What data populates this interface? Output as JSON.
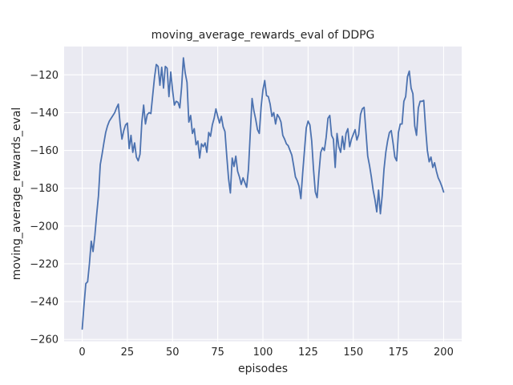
{
  "chart_data": {
    "type": "line",
    "title": "moving_average_rewards_eval of DDPG",
    "xlabel": "episodes",
    "ylabel": "moving_average_rewards_eval",
    "x_start": 0,
    "x_step": 1,
    "xlim": [
      -10,
      210
    ],
    "ylim": [
      -261,
      -105
    ],
    "xticks": [
      0,
      25,
      50,
      75,
      100,
      125,
      150,
      175,
      200
    ],
    "yticks": [
      -260,
      -240,
      -220,
      -200,
      -180,
      -160,
      -140,
      -120
    ],
    "grid": true,
    "legend_position": "none",
    "style": {
      "line_color": "#4c72b0",
      "plot_bg": "#eaeaf2",
      "grid_color": "#ffffff",
      "text_color": "#262626",
      "fig_bg": "#ffffff"
    },
    "series": [
      {
        "name": "moving_average_rewards_eval",
        "values": [
          -254.5,
          -242,
          -230.5,
          -229.5,
          -220,
          -208,
          -213.5,
          -205,
          -194,
          -184,
          -167.5,
          -162,
          -156,
          -150.5,
          -147,
          -144.5,
          -143,
          -141.5,
          -140,
          -137.5,
          -135.5,
          -146,
          -154,
          -149.5,
          -146.5,
          -145.5,
          -159,
          -152,
          -161,
          -156,
          -163.5,
          -165.5,
          -162,
          -145,
          -136,
          -146,
          -141,
          -140,
          -140.5,
          -131,
          -121.5,
          -114.5,
          -115.5,
          -125.5,
          -116,
          -127,
          -115.5,
          -116.5,
          -131.5,
          -118.5,
          -128,
          -136,
          -134,
          -134.5,
          -137.5,
          -126.5,
          -111,
          -119,
          -124,
          -145,
          -141.5,
          -151,
          -148.5,
          -157,
          -155,
          -164,
          -156.5,
          -158,
          -156,
          -161,
          -150.5,
          -152.5,
          -146.5,
          -143,
          -138,
          -142,
          -145.5,
          -142,
          -147.5,
          -150,
          -163,
          -175,
          -182.5,
          -164,
          -168.5,
          -163,
          -171,
          -174,
          -178,
          -174.5,
          -177,
          -179.5,
          -170,
          -151,
          -132.5,
          -139,
          -143.5,
          -149,
          -151,
          -137,
          -128,
          -123,
          -131,
          -131.5,
          -135.5,
          -142,
          -140,
          -146,
          -141,
          -142.5,
          -145,
          -152,
          -154,
          -156.5,
          -157.5,
          -160,
          -162.5,
          -168,
          -174,
          -176,
          -179,
          -185.5,
          -172,
          -160,
          -148,
          -144.5,
          -146.5,
          -155,
          -170,
          -182,
          -185,
          -172,
          -161,
          -158.5,
          -160,
          -153,
          -143,
          -141.5,
          -152,
          -154,
          -169,
          -151,
          -158,
          -161,
          -152.5,
          -159.5,
          -151,
          -148.5,
          -158,
          -154,
          -151.5,
          -149,
          -154.5,
          -151.5,
          -141,
          -138,
          -137.2,
          -150,
          -163,
          -168,
          -174,
          -181,
          -186,
          -192.5,
          -181,
          -193.5,
          -184,
          -170,
          -161,
          -155,
          -150.5,
          -149.5,
          -156,
          -163.5,
          -165.5,
          -150.5,
          -146,
          -146,
          -134,
          -131.5,
          -121,
          -118,
          -127,
          -130,
          -147,
          -152,
          -137.5,
          -134,
          -134,
          -133.5,
          -148,
          -160,
          -166,
          -163.5,
          -169,
          -166.5,
          -171,
          -174.5,
          -176.5,
          -179,
          -182
        ]
      }
    ]
  }
}
